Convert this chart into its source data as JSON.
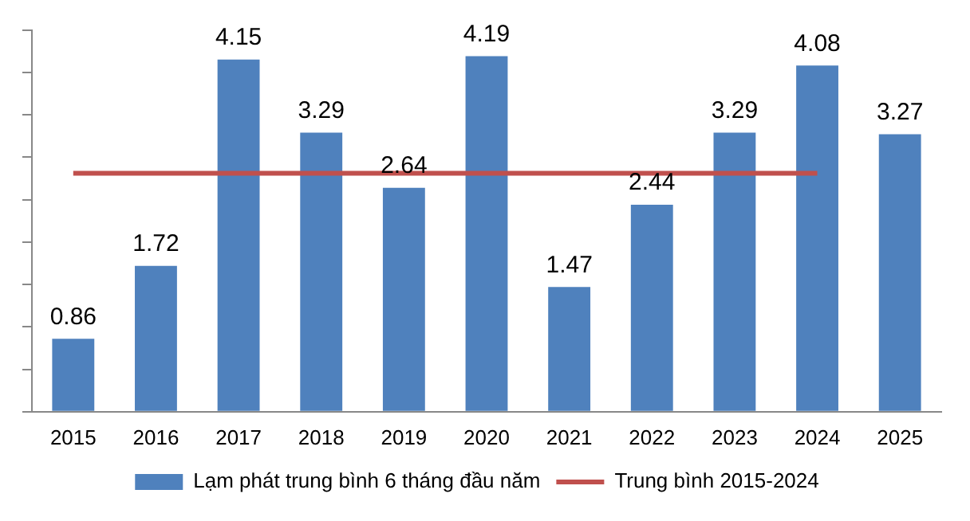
{
  "chart_data": {
    "type": "bar",
    "categories": [
      "2015",
      "2016",
      "2017",
      "2018",
      "2019",
      "2020",
      "2021",
      "2022",
      "2023",
      "2024",
      "2025"
    ],
    "series": [
      {
        "name": "Lạm phát trung bình 6 tháng đầu năm",
        "color": "#4f81bd",
        "values": [
          0.86,
          1.72,
          4.15,
          3.29,
          2.64,
          4.19,
          1.47,
          2.44,
          3.29,
          4.08,
          3.27
        ],
        "value_labels": [
          "0.86",
          "1.72",
          "4.15",
          "3.29",
          "2.64",
          "4.19",
          "1.47",
          "2.44",
          "3.29",
          "4.08",
          "3.27"
        ]
      },
      {
        "name": "Trung bình 2015-2024",
        "type": "line",
        "color": "#c0504d",
        "values": [
          2.81,
          2.81,
          2.81,
          2.81,
          2.81,
          2.81,
          2.81,
          2.81,
          2.81,
          2.81,
          null
        ]
      }
    ],
    "ylim": [
      0,
      4.5
    ],
    "yticks": [
      {
        "value": 0,
        "label": null
      },
      {
        "value": 0.5,
        "label": null
      },
      {
        "value": 1,
        "label": null
      },
      {
        "value": 1.5,
        "label": null
      },
      {
        "value": 2,
        "label": null
      },
      {
        "value": 2.5,
        "label": null
      },
      {
        "value": 3,
        "label": null
      },
      {
        "value": 3.5,
        "label": null
      },
      {
        "value": 4,
        "label": null
      },
      {
        "value": 4.5,
        "label": null
      }
    ],
    "tick_labels": "x",
    "grid": false,
    "legend": "bottom",
    "marker": "none",
    "line_style": "solid"
  }
}
